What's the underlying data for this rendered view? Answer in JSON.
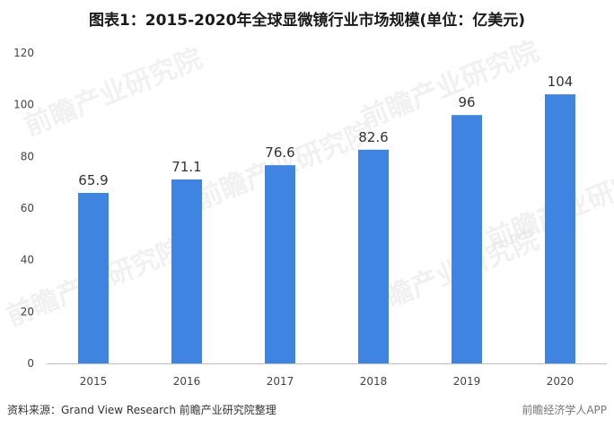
{
  "header": {
    "title": "图表1：2015-2020年全球显微镜行业市场规模(单位：亿美元)"
  },
  "watermark": {
    "text": "前瞻产业研究院"
  },
  "footer": {
    "source": "资料来源：Grand View Research 前瞻产业研究院整理",
    "brand": "前瞻经济学人APP"
  },
  "chart_data": {
    "type": "bar",
    "title": "图表1：2015-2020年全球显微镜行业市场规模(单位：亿美元)",
    "categories": [
      "2015",
      "2016",
      "2017",
      "2018",
      "2019",
      "2020"
    ],
    "values": [
      65.9,
      71.1,
      76.6,
      82.6,
      96,
      104
    ],
    "value_labels": [
      "65.9",
      "71.1",
      "76.6",
      "82.6",
      "96",
      "104"
    ],
    "ylim": [
      0,
      120
    ],
    "yticks": [
      0,
      20,
      40,
      60,
      80,
      100,
      120
    ],
    "grid": false,
    "bar_color": "#3f84e0",
    "axis_color": "#bfbfbf"
  }
}
